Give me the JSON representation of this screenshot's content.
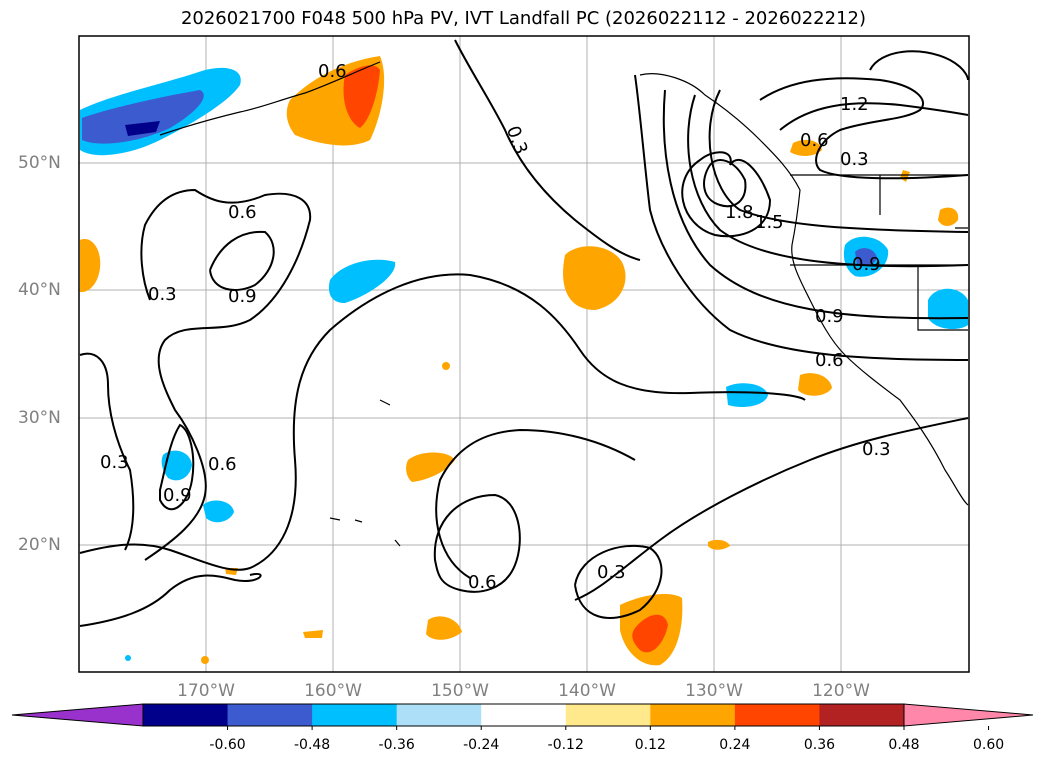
{
  "title": "2026021700 F048 500 hPa PV, IVT Landfall PC (2026022112 - 2026022212)",
  "lat_labels": [
    "50°N",
    "40°N",
    "30°N",
    "20°N"
  ],
  "lon_labels": [
    "170°W",
    "160°W",
    "150°W",
    "140°W",
    "130°W",
    "120°W"
  ],
  "contour_labels": [
    "0.6",
    "0.3",
    "0.6",
    "0.3",
    "0.9",
    "1.2",
    "0.6",
    "0.3",
    "1.8",
    "1.5",
    "0.9",
    "0.9",
    "0.6",
    "0.3",
    "0.3",
    "0.9",
    "0.6",
    "0.6",
    "0.3"
  ],
  "colorbar": {
    "ticks": [
      "-0.60",
      "-0.48",
      "-0.36",
      "-0.24",
      "-0.12",
      "0.12",
      "0.24",
      "0.36",
      "0.48",
      "0.60"
    ],
    "colors": [
      "#9932cc",
      "#00008b",
      "#3b5bcf",
      "#00bfff",
      "#ade0f8",
      "#ffffff",
      "#ffe98c",
      "#ffa500",
      "#ff4500",
      "#b22222",
      "#ff88aa"
    ]
  }
}
